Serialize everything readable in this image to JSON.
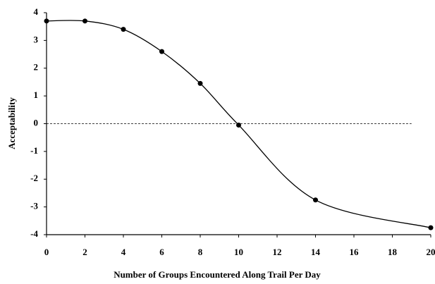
{
  "chart_data": {
    "type": "line",
    "xlabel": "Number of Groups Encountered Along Trail Per Day",
    "ylabel": "Acceptability",
    "x": [
      0,
      2,
      4,
      6,
      8,
      10,
      14,
      20
    ],
    "series": [
      {
        "color": "#000000",
        "values": [
          3.7,
          3.7,
          3.4,
          2.6,
          1.45,
          -0.05,
          -2.75,
          -3.75
        ]
      }
    ],
    "xlim": [
      0,
      20
    ],
    "xticks": [
      0,
      2,
      4,
      6,
      8,
      10,
      12,
      14,
      16,
      18,
      20
    ],
    "ylim": [
      -4,
      4
    ],
    "yticks": [
      -4,
      -3,
      -2,
      -1,
      0,
      1,
      2,
      3,
      4
    ],
    "reference_line": {
      "y": 0,
      "xmax": 19
    },
    "smooth": true,
    "grid": false
  }
}
